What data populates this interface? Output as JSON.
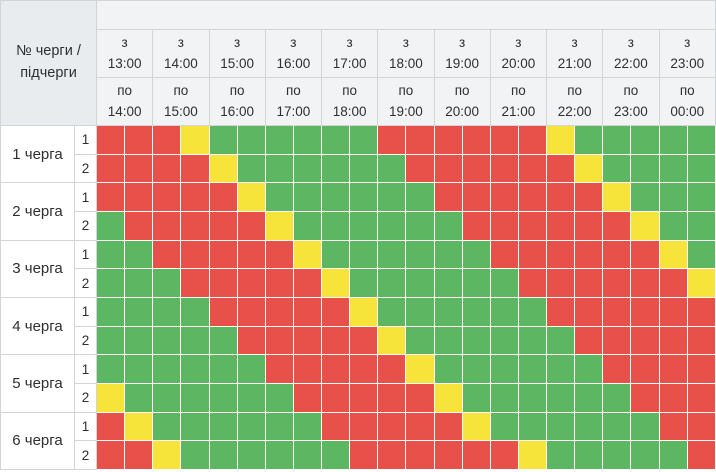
{
  "header": {
    "corner_label": "№ черги / підчерги",
    "from_prefix": "з",
    "to_prefix": "по",
    "columns": [
      {
        "from": "13:00",
        "to": "14:00"
      },
      {
        "from": "14:00",
        "to": "15:00"
      },
      {
        "from": "15:00",
        "to": "16:00"
      },
      {
        "from": "16:00",
        "to": "17:00"
      },
      {
        "from": "17:00",
        "to": "18:00"
      },
      {
        "from": "18:00",
        "to": "19:00"
      },
      {
        "from": "19:00",
        "to": "20:00"
      },
      {
        "from": "20:00",
        "to": "21:00"
      },
      {
        "from": "21:00",
        "to": "22:00"
      },
      {
        "from": "22:00",
        "to": "23:00"
      },
      {
        "from": "23:00",
        "to": "00:00"
      }
    ]
  },
  "queues": [
    {
      "label": "1 черга",
      "subqueues": [
        {
          "label": "1",
          "cells": "RRRYGGGGGGRRRRRRYGGGGG"
        },
        {
          "label": "2",
          "cells": "RRRRYGGGGGGRRRRRRYGGGG"
        }
      ]
    },
    {
      "label": "2 черга",
      "subqueues": [
        {
          "label": "1",
          "cells": "RRRRRYGGGGGGRRRRRRYGGG"
        },
        {
          "label": "2",
          "cells": "GRRRRRYGGGGGGRRRRRRYGG"
        }
      ]
    },
    {
      "label": "3 черга",
      "subqueues": [
        {
          "label": "1",
          "cells": "GGRRRRRYGGGGGGRRRRRRYG"
        },
        {
          "label": "2",
          "cells": "GGGRRRRRYGGGGGGRRRRRRY"
        }
      ]
    },
    {
      "label": "4 черга",
      "subqueues": [
        {
          "label": "1",
          "cells": "GGGGRRRRRYGGGGGGRRRRRR"
        },
        {
          "label": "2",
          "cells": "GGGGGRRRRRYGGGGGGRRRRR"
        }
      ]
    },
    {
      "label": "5 черга",
      "subqueues": [
        {
          "label": "1",
          "cells": "GGGGGGRRRRRYGGGGGGRRRR"
        },
        {
          "label": "2",
          "cells": "YGGGGGGRRRRRYGGGGGGRRR"
        }
      ]
    },
    {
      "label": "6 черга",
      "subqueues": [
        {
          "label": "1",
          "cells": "RYGGGGGGRRRRRYGGGGGGRR"
        },
        {
          "label": "2",
          "cells": "RRYGGGGGGRRRRRRYGGGGGR"
        }
      ]
    }
  ],
  "colors": {
    "R": "#e8514a",
    "G": "#5db661",
    "Y": "#f6e43b"
  },
  "chart_data": {
    "type": "heatmap",
    "title": "",
    "xlabel": "",
    "ylabel": "№ черги / підчерги",
    "slot_minutes": 30,
    "time_start": "13:00",
    "time_end": "00:00",
    "slot_start_times": [
      "13:00",
      "13:30",
      "14:00",
      "14:30",
      "15:00",
      "15:30",
      "16:00",
      "16:30",
      "17:00",
      "17:30",
      "18:00",
      "18:30",
      "19:00",
      "19:30",
      "20:00",
      "20:30",
      "21:00",
      "21:30",
      "22:00",
      "22:30",
      "23:00",
      "23:30"
    ],
    "row_labels": [
      "1 черга / 1",
      "1 черга / 2",
      "2 черга / 1",
      "2 черга / 2",
      "3 черга / 1",
      "3 черга / 2",
      "4 черга / 1",
      "4 черга / 2",
      "5 черга / 1",
      "5 черга / 2",
      "6 черга / 1",
      "6 черга / 2"
    ],
    "matrix": [
      "RRRYGGGGGGRRRRRRYGGGGG",
      "RRRRYGGGGGGRRRRRRYGGGG",
      "RRRRRYGGGGGGRRRRRRYGGG",
      "GRRRRRYGGGGGGRRRRRRYGG",
      "GGRRRRRYGGGGGGRRRRRRYG",
      "GGGRRRRRYGGGGGGRRRRRRY",
      "GGGGRRRRRYGGGGGGRRRRRR",
      "GGGGGRRRRRYGGGGGGRRRRR",
      "GGGGGGRRRRRYGGGGGGRRRR",
      "YGGGGGGRRRRRYGGGGGGRRR",
      "RYGGGGGGRRRRRYGGGGGGRR",
      "RRYGGGGGGRRRRRRYGGGGGR"
    ],
    "color_key": {
      "R": "#e8514a",
      "G": "#5db661",
      "Y": "#f6e43b"
    }
  }
}
